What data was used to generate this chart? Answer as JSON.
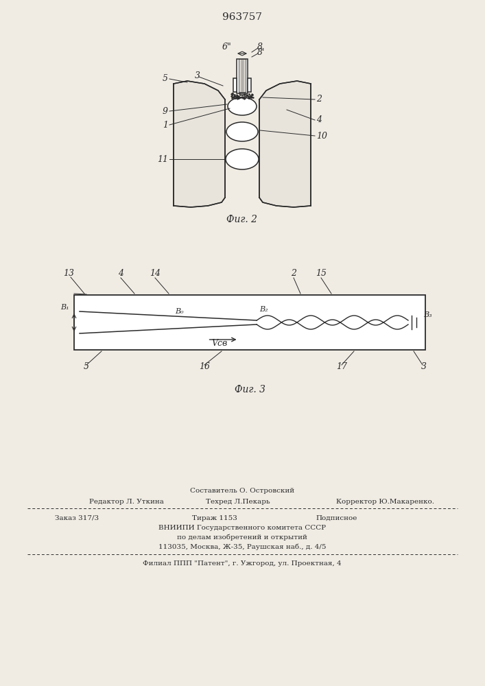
{
  "title": "963757",
  "fig2_caption": "Фиг. 2",
  "fig3_caption": "Фиг. 3",
  "bottom_line1": "Составитель О. Островский",
  "bottom_line2a": "Редактор Л. Уткина",
  "bottom_line2b": "Техред Л.Пекарь",
  "bottom_line2c": "Корректор Ю.Макаренко.",
  "bottom_line3a": "Заказ 317/3",
  "bottom_line3b": "Тираж 1153",
  "bottom_line3c": "Подписное",
  "bottom_line4": "ВНИИПИ Государственного комитета СССР",
  "bottom_line5": "по делам изобретений и открытий",
  "bottom_line6": "113035, Москва, Ж-35, Раушская наб., д. 4/5",
  "bottom_line7": "Филиал ППП \"Патент\", г. Ужгород, ул. Проектная, 4",
  "bg_color": "#f0ece4",
  "line_color": "#2a2a2a"
}
